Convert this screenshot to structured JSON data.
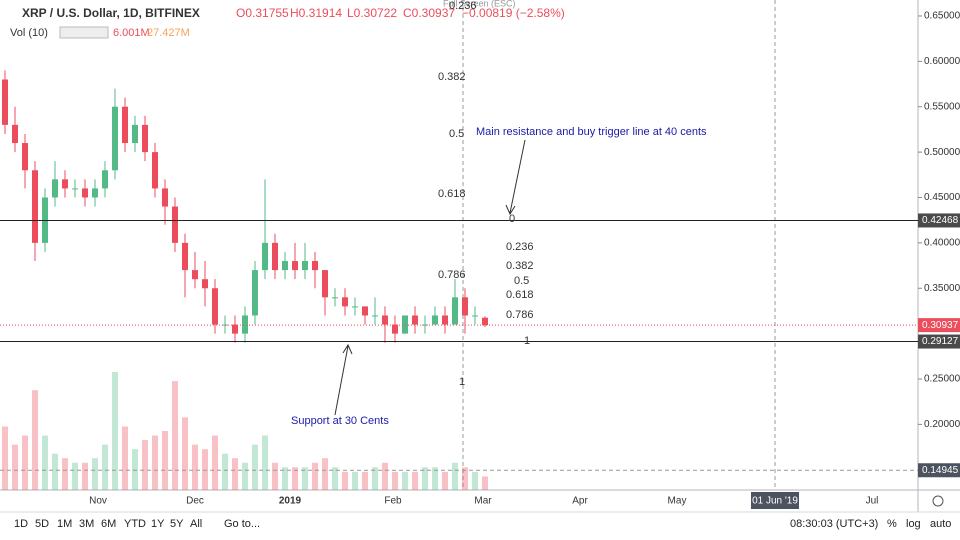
{
  "chart_data": {
    "type": "candlestick",
    "legend": {
      "symbol": "XRP / U.S. Dollar, 1D, BITFINEX",
      "open": "O0.31755",
      "high": "H0.31914",
      "low": "L0.30722",
      "close": "C0.30937",
      "change": "−0.00819 (−2.58%)"
    },
    "volume_legend": {
      "name": "Vol (10)",
      "value": "6.001M",
      "ma": "27.427M"
    },
    "tooltip": "Full Screen (ESC)",
    "up_color": "#53b987",
    "down_color": "#eb4d5c",
    "ylim": [
      0.1277,
      0.6676
    ],
    "yticks": [
      {
        "value": 0.65,
        "label": "0.65000"
      },
      {
        "value": 0.6,
        "label": "0.60000"
      },
      {
        "value": 0.55,
        "label": "0.55000"
      },
      {
        "value": 0.5,
        "label": "0.50000"
      },
      {
        "value": 0.45,
        "label": "0.45000"
      },
      {
        "value": 0.4,
        "label": "0.40000"
      },
      {
        "value": 0.35,
        "label": "0.35000"
      },
      {
        "value": 0.25,
        "label": "0.25000"
      },
      {
        "value": 0.2,
        "label": "0.20000"
      }
    ],
    "grid": false,
    "categories": [
      "Nov",
      "Dec",
      "2019",
      "Feb",
      "Mar",
      "Apr",
      "May",
      "01 Jun '19",
      "Jul"
    ],
    "ohlc": [
      [
        0.58,
        0.59,
        0.52,
        0.53
      ],
      [
        0.53,
        0.55,
        0.5,
        0.51
      ],
      [
        0.51,
        0.52,
        0.46,
        0.48
      ],
      [
        0.48,
        0.49,
        0.38,
        0.4
      ],
      [
        0.4,
        0.46,
        0.39,
        0.45
      ],
      [
        0.45,
        0.49,
        0.44,
        0.47
      ],
      [
        0.47,
        0.48,
        0.45,
        0.46
      ],
      [
        0.46,
        0.47,
        0.45,
        0.46
      ],
      [
        0.46,
        0.47,
        0.44,
        0.45
      ],
      [
        0.45,
        0.47,
        0.44,
        0.46
      ],
      [
        0.46,
        0.49,
        0.45,
        0.48
      ],
      [
        0.48,
        0.57,
        0.47,
        0.55
      ],
      [
        0.55,
        0.56,
        0.5,
        0.51
      ],
      [
        0.51,
        0.54,
        0.5,
        0.53
      ],
      [
        0.53,
        0.54,
        0.49,
        0.5
      ],
      [
        0.5,
        0.51,
        0.45,
        0.46
      ],
      [
        0.46,
        0.47,
        0.42,
        0.44
      ],
      [
        0.44,
        0.45,
        0.39,
        0.4
      ],
      [
        0.4,
        0.41,
        0.34,
        0.37
      ],
      [
        0.37,
        0.39,
        0.35,
        0.36
      ],
      [
        0.36,
        0.38,
        0.33,
        0.35
      ],
      [
        0.35,
        0.36,
        0.3,
        0.31
      ],
      [
        0.31,
        0.32,
        0.3,
        0.31
      ],
      [
        0.31,
        0.32,
        0.29,
        0.3
      ],
      [
        0.3,
        0.33,
        0.29,
        0.32
      ],
      [
        0.32,
        0.38,
        0.31,
        0.37
      ],
      [
        0.37,
        0.47,
        0.36,
        0.4
      ],
      [
        0.4,
        0.41,
        0.36,
        0.37
      ],
      [
        0.37,
        0.39,
        0.36,
        0.38
      ],
      [
        0.38,
        0.4,
        0.36,
        0.37
      ],
      [
        0.37,
        0.4,
        0.36,
        0.38
      ],
      [
        0.38,
        0.39,
        0.35,
        0.37
      ],
      [
        0.37,
        0.37,
        0.32,
        0.34
      ],
      [
        0.34,
        0.35,
        0.33,
        0.34
      ],
      [
        0.34,
        0.35,
        0.32,
        0.33
      ],
      [
        0.33,
        0.34,
        0.32,
        0.33
      ],
      [
        0.33,
        0.33,
        0.31,
        0.32
      ],
      [
        0.32,
        0.34,
        0.31,
        0.32
      ],
      [
        0.32,
        0.33,
        0.29,
        0.31
      ],
      [
        0.31,
        0.32,
        0.29,
        0.3
      ],
      [
        0.3,
        0.32,
        0.3,
        0.32
      ],
      [
        0.32,
        0.33,
        0.3,
        0.31
      ],
      [
        0.31,
        0.32,
        0.3,
        0.31
      ],
      [
        0.31,
        0.33,
        0.31,
        0.32
      ],
      [
        0.32,
        0.33,
        0.3,
        0.31
      ],
      [
        0.31,
        0.36,
        0.31,
        0.34
      ],
      [
        0.34,
        0.35,
        0.3,
        0.32
      ],
      [
        0.32,
        0.33,
        0.31,
        0.32
      ],
      [
        0.31755,
        0.31914,
        0.30722,
        0.30937
      ]
    ],
    "volumes": [
      14,
      10,
      12,
      22,
      12,
      8,
      7,
      6,
      6,
      7,
      10,
      26,
      14,
      9,
      11,
      12,
      13,
      24,
      16,
      10,
      9,
      12,
      8,
      7,
      6,
      10,
      12,
      6,
      5,
      5,
      5,
      6,
      7,
      5,
      4,
      4,
      4,
      5,
      6,
      4,
      4,
      4,
      5,
      5,
      4,
      6,
      5,
      4,
      3
    ],
    "price_lines": [
      0.42468,
      0.29127
    ],
    "last_price": 0.30937,
    "crosshair_price": 0.14945,
    "fib_labels": [
      "0.236",
      "0.382",
      "0.5",
      "0.618",
      "0.786",
      "1",
      "0",
      "0.236",
      "0.382",
      "0.5",
      "0.618",
      "0.786",
      "1"
    ],
    "annotations": [
      "Main resistance and buy trigger line at 40 cents",
      "Support at 30 Cents"
    ],
    "toolbar": {
      "ranges": [
        "1D",
        "5D",
        "1M",
        "3M",
        "6M",
        "YTD",
        "1Y",
        "5Y",
        "All"
      ],
      "goto": "Go to...",
      "clock": "08:30:03 (UTC+3)",
      "percent": "%",
      "log": "log",
      "auto": "auto"
    }
  }
}
